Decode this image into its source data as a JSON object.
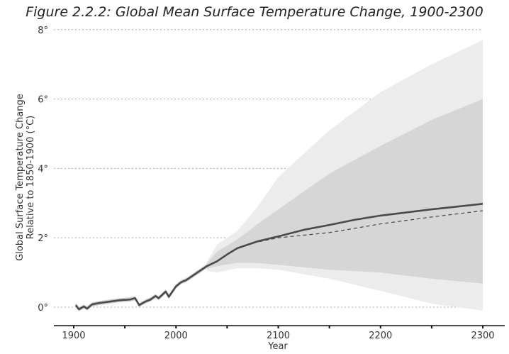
{
  "chart_data": {
    "type": "area",
    "title": "Figure 2.2.2: Global Mean Surface Temperature Change, 1900-2300",
    "xlabel": "Year",
    "ylabel_line1": "Global Surface Temperature Change",
    "ylabel_line2": "Relative to 1850-1900 (°C)",
    "xlim": [
      1900,
      2300
    ],
    "ylim": [
      0,
      8
    ],
    "xticks": [
      "1900",
      "2000",
      "2100",
      "2200",
      "2300"
    ],
    "xtick_values": [
      1900,
      2000,
      2100,
      2200,
      2300
    ],
    "yticks": [
      "0°",
      "2°",
      "4°",
      "6°",
      "8°"
    ],
    "ytick_values": [
      0,
      2,
      4,
      6,
      8
    ],
    "colors": {
      "line": "#4a4a4a",
      "inner": "#d6d6d6",
      "outer": "#ececec",
      "grid": "#aaaaaa"
    },
    "central": {
      "x": [
        1902,
        1905,
        1910,
        1913,
        1918,
        1925,
        1935,
        1945,
        1955,
        1960,
        1964,
        1970,
        1975,
        1980,
        1983,
        1990,
        1993,
        2000,
        2005,
        2010,
        2020,
        2030,
        2040,
        2050,
        2060,
        2070,
        2080,
        2100,
        2125,
        2150,
        2175,
        2200,
        2250,
        2300
      ],
      "y": [
        0.06,
        -0.06,
        0.02,
        -0.04,
        0.08,
        0.12,
        0.16,
        0.2,
        0.22,
        0.26,
        0.06,
        0.16,
        0.22,
        0.32,
        0.26,
        0.45,
        0.3,
        0.6,
        0.72,
        0.78,
        0.98,
        1.18,
        1.32,
        1.52,
        1.7,
        1.8,
        1.9,
        2.04,
        2.23,
        2.37,
        2.52,
        2.64,
        2.82,
        2.98
      ]
    },
    "dashed": {
      "x": [
        2075,
        2100,
        2150,
        2200,
        2250,
        2300
      ],
      "y": [
        1.85,
        2.0,
        2.15,
        2.4,
        2.6,
        2.78
      ]
    },
    "outer_band": {
      "x": [
        2030,
        2040,
        2060,
        2080,
        2100,
        2150,
        2200,
        2250,
        2300
      ],
      "upper": [
        1.3,
        1.8,
        2.2,
        2.9,
        3.75,
        5.1,
        6.2,
        7.0,
        7.7
      ],
      "lower": [
        1.05,
        1.0,
        1.12,
        1.12,
        1.08,
        0.82,
        0.47,
        0.1,
        -0.1
      ]
    },
    "inner_band": {
      "x": [
        2030,
        2040,
        2060,
        2080,
        2100,
        2150,
        2200,
        2250,
        2300
      ],
      "upper": [
        1.25,
        1.6,
        1.95,
        2.4,
        2.82,
        3.85,
        4.65,
        5.4,
        6.0
      ],
      "lower": [
        1.1,
        1.18,
        1.28,
        1.27,
        1.22,
        1.08,
        1.0,
        0.82,
        0.68
      ]
    }
  }
}
